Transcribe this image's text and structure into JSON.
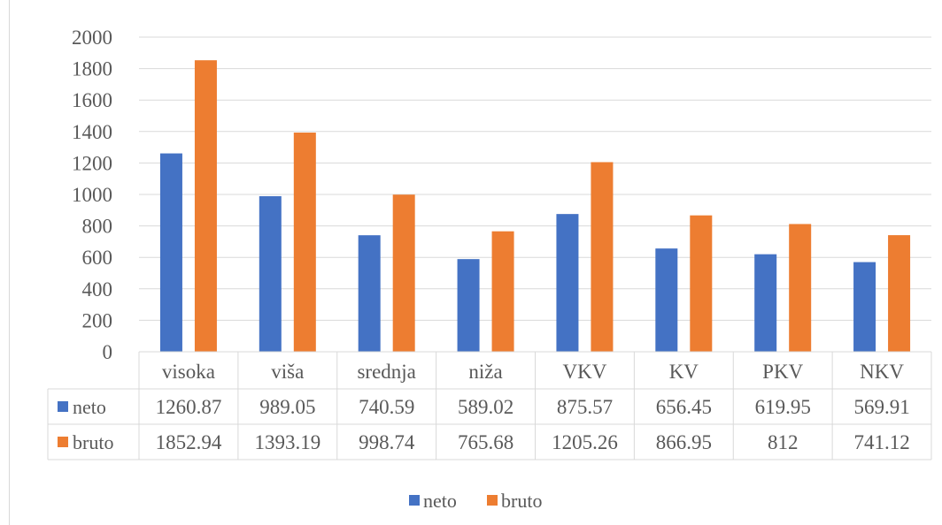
{
  "chart_data": {
    "type": "bar",
    "categories": [
      "visoka",
      "viša",
      "srednja",
      "niža",
      "VKV",
      "KV",
      "PKV",
      "NKV"
    ],
    "series": [
      {
        "name": "neto",
        "color": "#4472C4",
        "values": [
          1260.87,
          989.05,
          740.59,
          589.02,
          875.57,
          656.45,
          619.95,
          569.91
        ],
        "labels": [
          "1260.87",
          "989.05",
          "740.59",
          "589.02",
          "875.57",
          "656.45",
          "619.95",
          "569.91"
        ]
      },
      {
        "name": "bruto",
        "color": "#ED7D31",
        "values": [
          1852.94,
          1393.19,
          998.74,
          765.68,
          1205.26,
          866.95,
          812,
          741.12
        ],
        "labels": [
          "1852.94",
          "1393.19",
          "998.74",
          "765.68",
          "1205.26",
          "866.95",
          "812",
          "741.12"
        ]
      }
    ],
    "yticks": [
      "2000",
      "1800",
      "1600",
      "1400",
      "1200",
      "1000",
      "800",
      "600",
      "400",
      "200",
      "0"
    ],
    "ylim": [
      0,
      2000
    ],
    "grid": true,
    "data_table": true,
    "legend_position": "bottom"
  }
}
